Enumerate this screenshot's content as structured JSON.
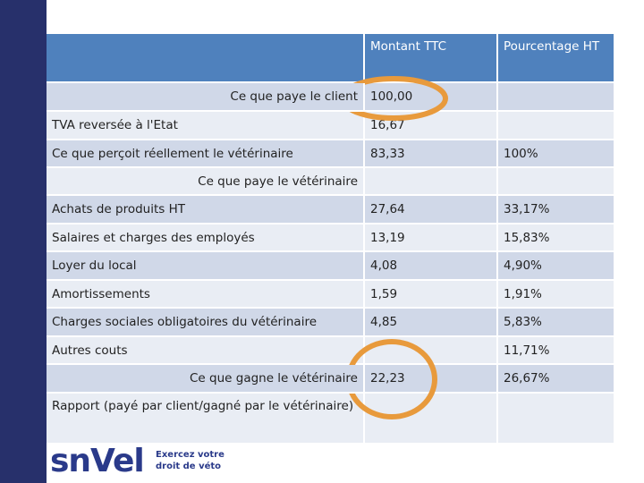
{
  "table": {
    "header": [
      null,
      "Montant  TTC",
      "Pourcentage HT"
    ],
    "rows": [
      [
        "Ce que paye le client",
        "100,00",
        null
      ],
      [
        "TVA reversée à l'Etat",
        "16,67",
        null
      ],
      [
        "Ce que perçoit réellement le vétérinaire",
        "83,33",
        "100%"
      ],
      [
        "Ce que paye le vétérinaire",
        null,
        null
      ],
      [
        "Achats de produits HT",
        "27,64",
        "33,17%"
      ],
      [
        "Salaires et charges des employés",
        "13,19",
        "15,83%"
      ],
      [
        "Loyer du local",
        "4,08",
        "4,90%"
      ],
      [
        "Amortissements",
        "1,59",
        "1,91%"
      ],
      [
        "Charges sociales obligatoires du vétérinaire",
        "4,85",
        "5,83%"
      ],
      [
        "Autres couts",
        null,
        "11,71%"
      ],
      [
        "Ce que gagne le vétérinaire",
        "22,23",
        "26,67%"
      ],
      [
        "Rapport (payé par client/gagné par le vétérinaire)",
        null,
        null
      ]
    ]
  },
  "logo": {
    "name": "snVel",
    "tagline": [
      "Exercez votre",
      "droit de véto"
    ]
  }
}
